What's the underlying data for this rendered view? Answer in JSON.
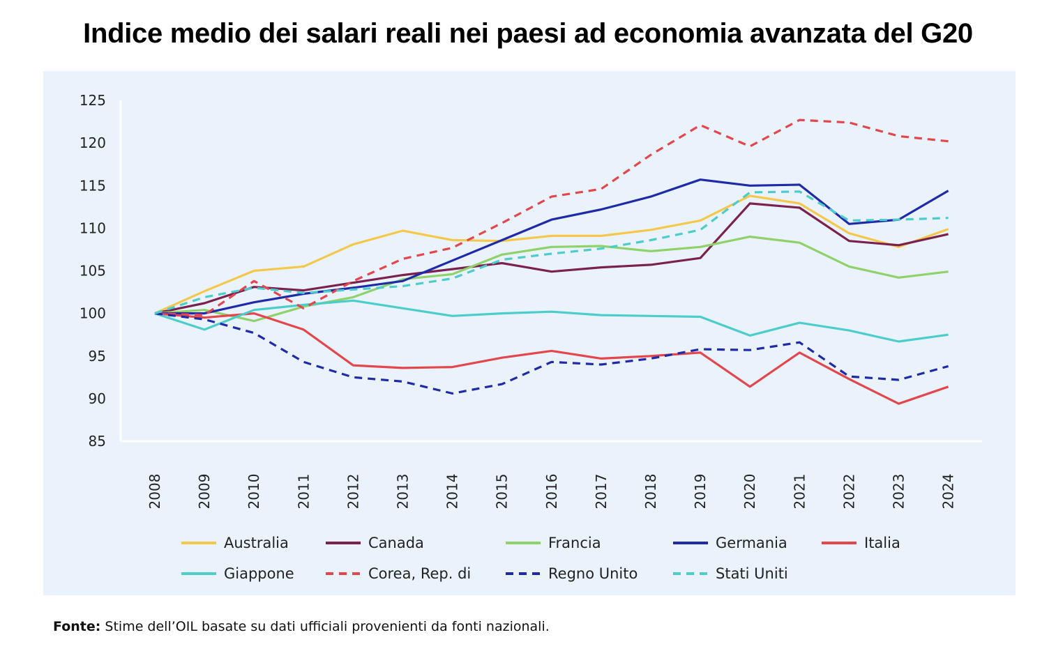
{
  "chart_data": {
    "type": "line",
    "title": "Indice medio dei salari reali nei paesi ad economia avanzata del G20",
    "xlabel": "",
    "ylabel": "",
    "ylim": [
      85,
      125
    ],
    "yticks": [
      "125",
      "120",
      "115",
      "110",
      "105",
      "100",
      "95",
      "90",
      "85"
    ],
    "x": [
      "2008",
      "2009",
      "2010",
      "2011",
      "2012",
      "2013",
      "2014",
      "2015",
      "2016",
      "2017",
      "2018",
      "2019",
      "2020",
      "2021",
      "2022",
      "2023",
      "2024"
    ],
    "grid": false,
    "legend_position": "bottom",
    "series": [
      {
        "name": "Australia",
        "color": "#f5c84c",
        "dash": false,
        "values": [
          100,
          102.6,
          105.0,
          105.5,
          108.1,
          109.7,
          108.6,
          108.5,
          109.1,
          109.1,
          109.8,
          110.9,
          113.8,
          112.9,
          109.4,
          107.8,
          109.9
        ]
      },
      {
        "name": "Canada",
        "color": "#7b2150",
        "dash": false,
        "values": [
          100,
          101.2,
          103.1,
          102.7,
          103.6,
          104.5,
          105.2,
          105.9,
          104.9,
          105.4,
          105.7,
          106.5,
          112.9,
          112.4,
          108.5,
          108.0,
          109.3
        ]
      },
      {
        "name": "Francia",
        "color": "#8fd16b",
        "dash": false,
        "values": [
          100,
          100.4,
          99.1,
          100.8,
          101.9,
          104.0,
          104.6,
          106.9,
          107.8,
          107.9,
          107.3,
          107.8,
          109.0,
          108.3,
          105.5,
          104.2,
          104.9
        ]
      },
      {
        "name": "Germania",
        "color": "#1f2aa8",
        "dash": false,
        "values": [
          100,
          100.0,
          101.3,
          102.3,
          103.0,
          103.8,
          106.2,
          108.6,
          111.0,
          112.2,
          113.7,
          115.7,
          115.0,
          115.1,
          110.5,
          111.0,
          114.4
        ]
      },
      {
        "name": "Italia",
        "color": "#e3474d",
        "dash": false,
        "values": [
          100,
          99.5,
          100.0,
          98.1,
          93.9,
          93.6,
          93.7,
          94.8,
          95.6,
          94.7,
          95.0,
          95.4,
          91.4,
          95.4,
          92.3,
          89.4,
          91.4
        ]
      },
      {
        "name": "Giappone",
        "color": "#4dcccc",
        "dash": false,
        "values": [
          100,
          98.1,
          100.4,
          101.0,
          101.5,
          100.6,
          99.7,
          100.0,
          100.2,
          99.8,
          99.7,
          99.6,
          97.4,
          98.9,
          98.0,
          96.7,
          97.5
        ]
      },
      {
        "name": "Corea, Rep. di",
        "color": "#e3474d",
        "dash": true,
        "values": [
          100,
          99.8,
          103.8,
          100.6,
          103.8,
          106.4,
          107.7,
          110.6,
          113.7,
          114.6,
          118.6,
          122.1,
          119.6,
          122.7,
          122.4,
          120.8,
          120.2
        ]
      },
      {
        "name": "Regno Unito",
        "color": "#1f2aa8",
        "dash": true,
        "values": [
          100,
          99.3,
          97.7,
          94.3,
          92.5,
          92.0,
          90.6,
          91.7,
          94.3,
          94.0,
          94.7,
          95.8,
          95.7,
          96.6,
          92.6,
          92.2,
          93.8
        ]
      },
      {
        "name": "Stati Uniti",
        "color": "#4dcccc",
        "dash": true,
        "values": [
          100,
          101.9,
          103.0,
          102.4,
          102.8,
          103.2,
          104.1,
          106.3,
          107.0,
          107.6,
          108.6,
          109.8,
          114.2,
          114.3,
          110.9,
          111.0,
          111.2
        ]
      }
    ],
    "source_label": "Fonte:",
    "source_text": "Stime dell’OIL basate su dati ufficiali provenienti da fonti nazionali."
  }
}
